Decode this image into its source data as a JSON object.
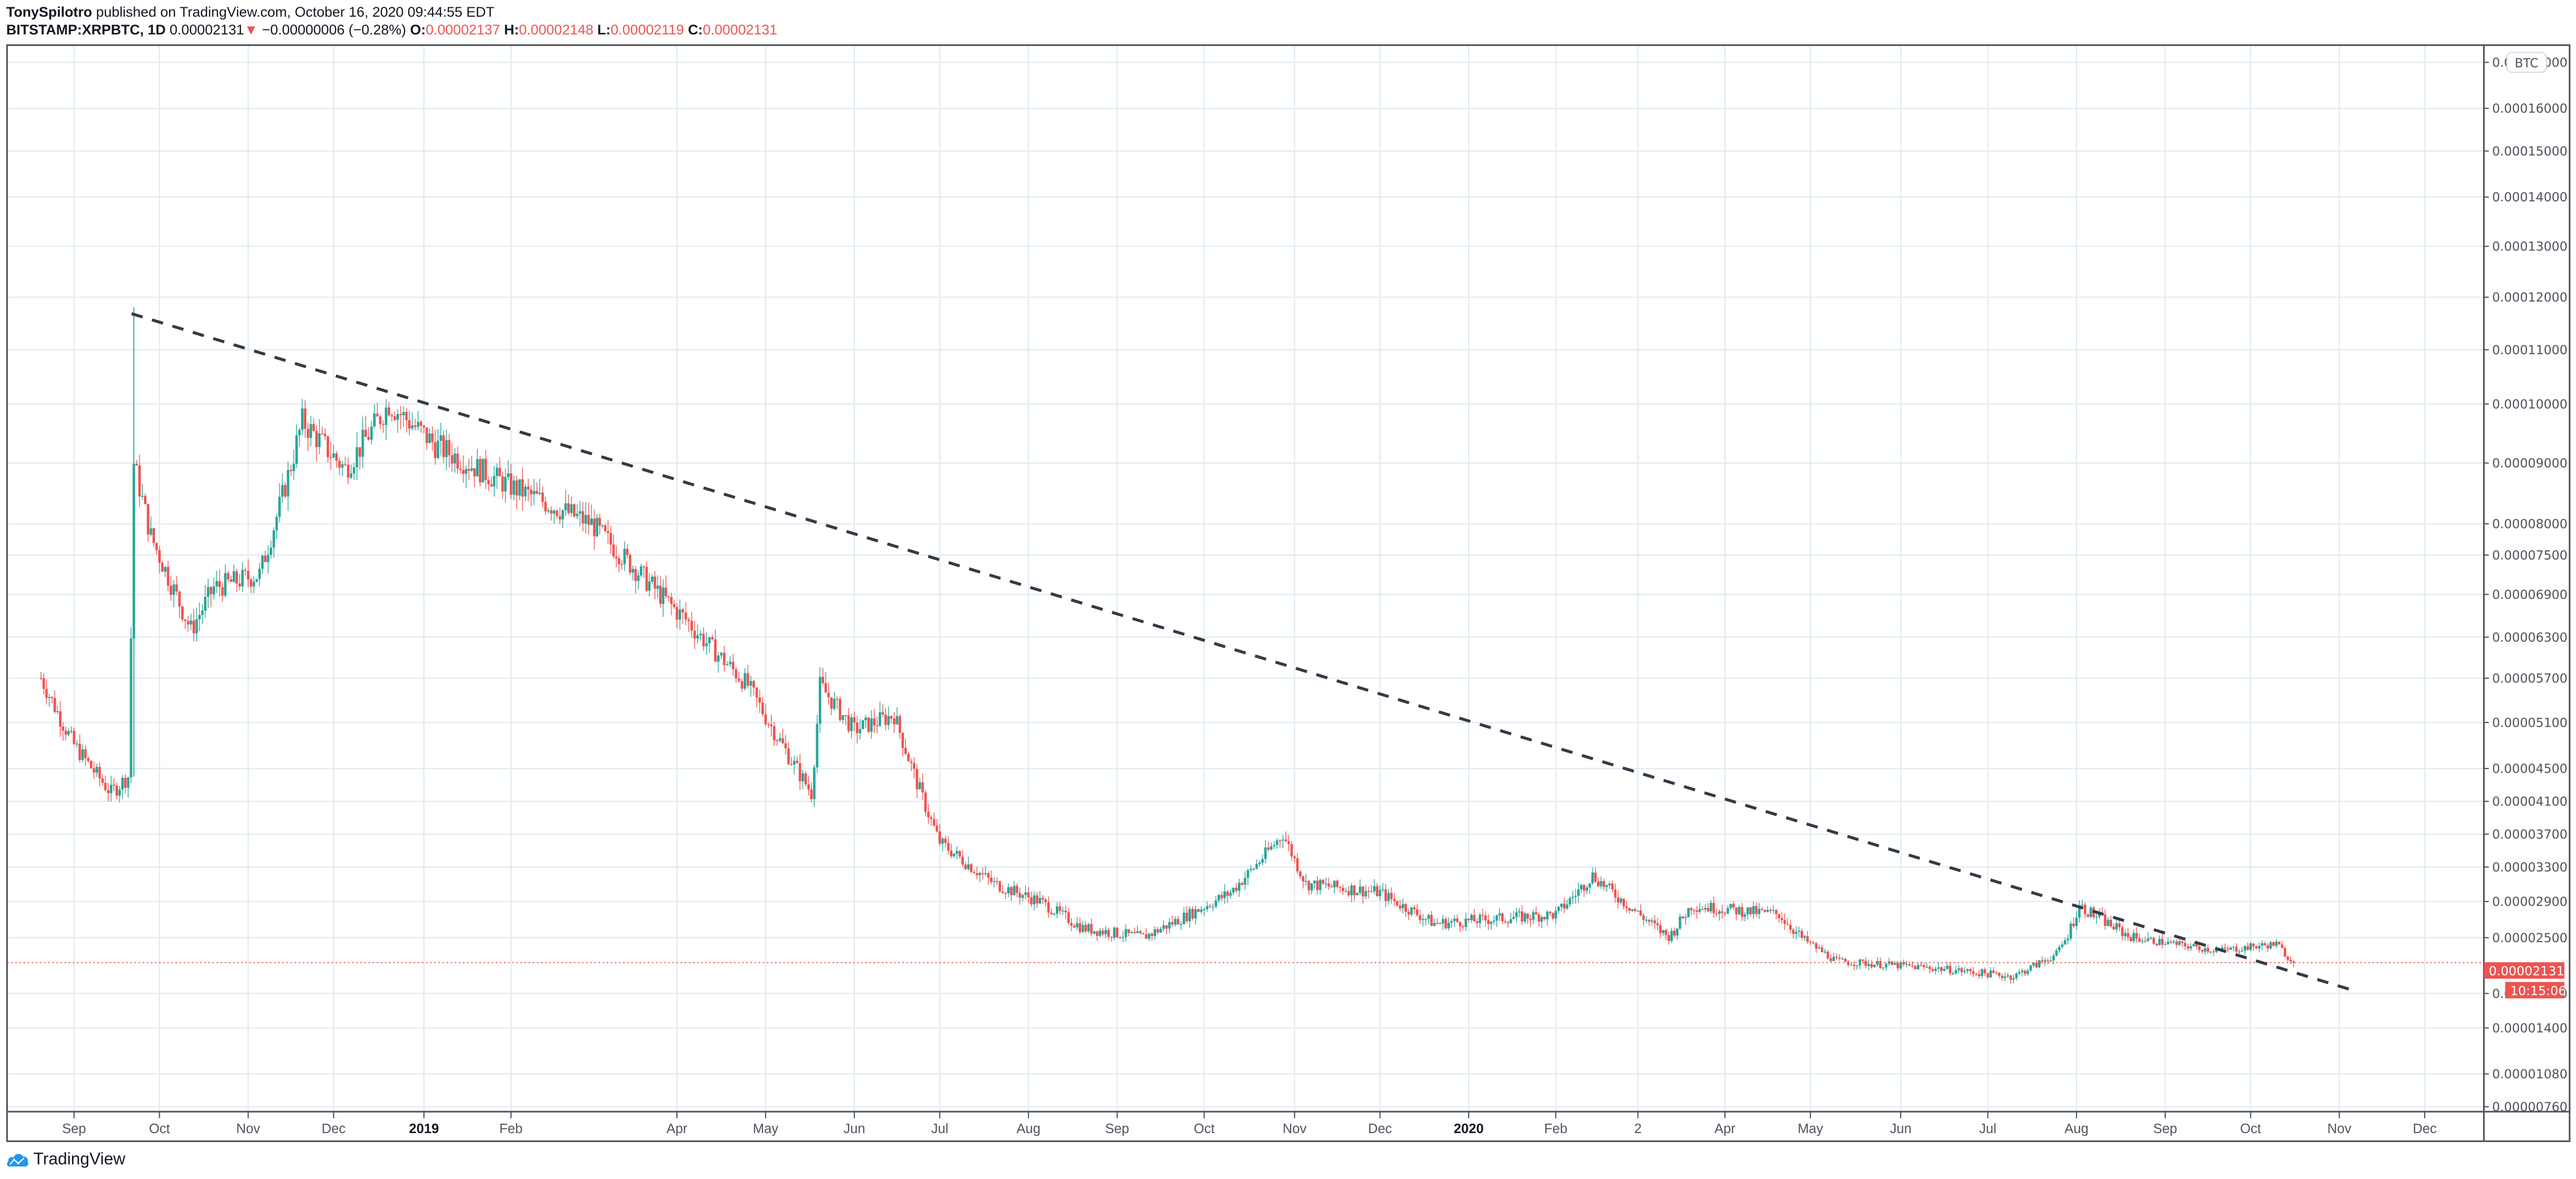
{
  "header": {
    "author": "TonySpilotro",
    "published_text": "published on TradingView.com, October 16, 2020 09:44:55 EDT",
    "symbol": "BITSTAMP:XRPBTC, 1D",
    "last_price": "0.00002131",
    "change_direction_icon": "down-triangle",
    "change": "−0.00000006 (−0.28%)",
    "open_label": "O:",
    "open": "0.00002137",
    "high_label": "H:",
    "high": "0.00002148",
    "low_label": "L:",
    "low": "0.00002119",
    "close_label": "C:",
    "close": "0.00002131"
  },
  "price_axis": {
    "currency_badge": "BTC",
    "current_price_label": "0.00002131",
    "countdown_label": "10:15:06"
  },
  "footer": {
    "brand": "TradingView"
  },
  "colors": {
    "up": "#26a69a",
    "down": "#ef5350",
    "grid": "#e1ecf2",
    "border": "#50535e",
    "trendline": "#363a45",
    "price_line": "#ef5350",
    "text": "#131722",
    "axis_text": "#50535e",
    "logo_blue": "#2196f3"
  },
  "chart_data": {
    "type": "candlestick",
    "title": "BITSTAMP:XRPBTC, 1D",
    "xlabel": "",
    "ylabel": "BTC",
    "scale": "log",
    "grid": true,
    "ylim": [
      7.6e-06,
      0.00017
    ],
    "y_ticks": [
      {
        "label": "0.00017000",
        "y": 38
      },
      {
        "label": "0.00016000",
        "y": 66
      },
      {
        "label": "0.00015000",
        "y": 92
      },
      {
        "label": "0.00014000",
        "y": 120
      },
      {
        "label": "0.00013000",
        "y": 150
      },
      {
        "label": "0.00012000",
        "y": 181
      },
      {
        "label": "0.00011000",
        "y": 213
      },
      {
        "label": "0.00010000",
        "y": 246
      },
      {
        "label": "0.00009000",
        "y": 282
      },
      {
        "label": "0.00008000",
        "y": 319
      },
      {
        "label": "0.00007500",
        "y": 338
      },
      {
        "label": "0.00006900",
        "y": 362
      },
      {
        "label": "0.00006300",
        "y": 388
      },
      {
        "label": "0.00005700",
        "y": 413
      },
      {
        "label": "0.00005100",
        "y": 440
      },
      {
        "label": "0.00004500",
        "y": 468
      },
      {
        "label": "0.00004100",
        "y": 488
      },
      {
        "label": "0.00003700",
        "y": 508
      },
      {
        "label": "0.00003300",
        "y": 528
      },
      {
        "label": "0.00002900",
        "y": 549
      },
      {
        "label": "0.00002500",
        "y": 571
      },
      {
        "label": "0.00001750",
        "y": 605
      },
      {
        "label": "0.00001400",
        "y": 626
      },
      {
        "label": "0.00001080",
        "y": 654
      },
      {
        "label": "0.00000760",
        "y": 674
      }
    ],
    "x_ticks": [
      {
        "label": "Sep",
        "x": 45
      },
      {
        "label": "Oct",
        "x": 97
      },
      {
        "label": "Nov",
        "x": 151
      },
      {
        "label": "Dec",
        "x": 203
      },
      {
        "label": "2019",
        "x": 258,
        "bold": true
      },
      {
        "label": "Feb",
        "x": 311
      },
      {
        "label": "Apr",
        "x": 412
      },
      {
        "label": "May",
        "x": 466
      },
      {
        "label": "Jun",
        "x": 520
      },
      {
        "label": "Jul",
        "x": 572
      },
      {
        "label": "Aug",
        "x": 626
      },
      {
        "label": "Sep",
        "x": 680
      },
      {
        "label": "Oct",
        "x": 733
      },
      {
        "label": "Nov",
        "x": 788
      },
      {
        "label": "Dec",
        "x": 840
      },
      {
        "label": "2020",
        "x": 894,
        "bold": true
      },
      {
        "label": "Feb",
        "x": 947
      },
      {
        "label": "2",
        "x": 997
      },
      {
        "label": "Apr",
        "x": 1050
      },
      {
        "label": "May",
        "x": 1102
      },
      {
        "label": "Jun",
        "x": 1157
      },
      {
        "label": "Jul",
        "x": 1210
      },
      {
        "label": "Aug",
        "x": 1264
      },
      {
        "label": "Sep",
        "x": 1318
      },
      {
        "label": "Oct",
        "x": 1370
      },
      {
        "label": "Nov",
        "x": 1424
      },
      {
        "label": "Dec",
        "x": 1476
      }
    ],
    "price_path_approx": [
      {
        "date": "2018-08-20",
        "close": 5.7e-05
      },
      {
        "date": "2018-09-01",
        "close": 4.8e-05
      },
      {
        "date": "2018-09-14",
        "close": 4.2e-05
      },
      {
        "date": "2018-09-20",
        "close": 4.4e-05
      },
      {
        "date": "2018-09-22",
        "close": 9e-05
      },
      {
        "date": "2018-09-28",
        "close": 7.8e-05
      },
      {
        "date": "2018-10-12",
        "close": 6.4e-05
      },
      {
        "date": "2018-10-20",
        "close": 7e-05
      },
      {
        "date": "2018-11-05",
        "close": 7.2e-05
      },
      {
        "date": "2018-11-20",
        "close": 9.7e-05
      },
      {
        "date": "2018-12-05",
        "close": 8.9e-05
      },
      {
        "date": "2018-12-20",
        "close": 0.0001
      },
      {
        "date": "2019-01-05",
        "close": 9.3e-05
      },
      {
        "date": "2019-02-01",
        "close": 8.6e-05
      },
      {
        "date": "2019-03-01",
        "close": 8e-05
      },
      {
        "date": "2019-04-05",
        "close": 6.5e-05
      },
      {
        "date": "2019-04-25",
        "close": 5.6e-05
      },
      {
        "date": "2019-05-17",
        "close": 4.2e-05
      },
      {
        "date": "2019-05-20",
        "close": 5.6e-05
      },
      {
        "date": "2019-06-01",
        "close": 5e-05
      },
      {
        "date": "2019-06-15",
        "close": 5.2e-05
      },
      {
        "date": "2019-07-01",
        "close": 3.6e-05
      },
      {
        "date": "2019-07-20",
        "close": 3.1e-05
      },
      {
        "date": "2019-08-05",
        "close": 2.9e-05
      },
      {
        "date": "2019-08-20",
        "close": 2.6e-05
      },
      {
        "date": "2019-09-10",
        "close": 2.5e-05
      },
      {
        "date": "2019-10-10",
        "close": 3e-05
      },
      {
        "date": "2019-10-28",
        "close": 3.7e-05
      },
      {
        "date": "2019-11-05",
        "close": 3.1e-05
      },
      {
        "date": "2019-12-01",
        "close": 3e-05
      },
      {
        "date": "2019-12-20",
        "close": 2.65e-05
      },
      {
        "date": "2020-02-01",
        "close": 2.75e-05
      },
      {
        "date": "2020-02-14",
        "close": 3.2e-05
      },
      {
        "date": "2020-03-12",
        "close": 2.5e-05
      },
      {
        "date": "2020-03-20",
        "close": 2.85e-05
      },
      {
        "date": "2020-04-20",
        "close": 2.75e-05
      },
      {
        "date": "2020-05-10",
        "close": 2.15e-05
      },
      {
        "date": "2020-06-15",
        "close": 2.05e-05
      },
      {
        "date": "2020-07-10",
        "close": 1.95e-05
      },
      {
        "date": "2020-07-25",
        "close": 2.25e-05
      },
      {
        "date": "2020-08-02",
        "close": 2.85e-05
      },
      {
        "date": "2020-08-20",
        "close": 2.5e-05
      },
      {
        "date": "2020-09-20",
        "close": 2.3e-05
      },
      {
        "date": "2020-10-10",
        "close": 2.4e-05
      },
      {
        "date": "2020-10-16",
        "close": 2.131e-05
      }
    ],
    "annotations": [
      {
        "type": "trendline",
        "style": "dashed",
        "from": {
          "date": "2018-09-22",
          "price": 0.000118
        },
        "to": {
          "date": "2020-11-05",
          "price": 1.8e-05
        }
      },
      {
        "type": "horizontal_price_line",
        "style": "dotted",
        "price": 2.131e-05
      }
    ]
  }
}
